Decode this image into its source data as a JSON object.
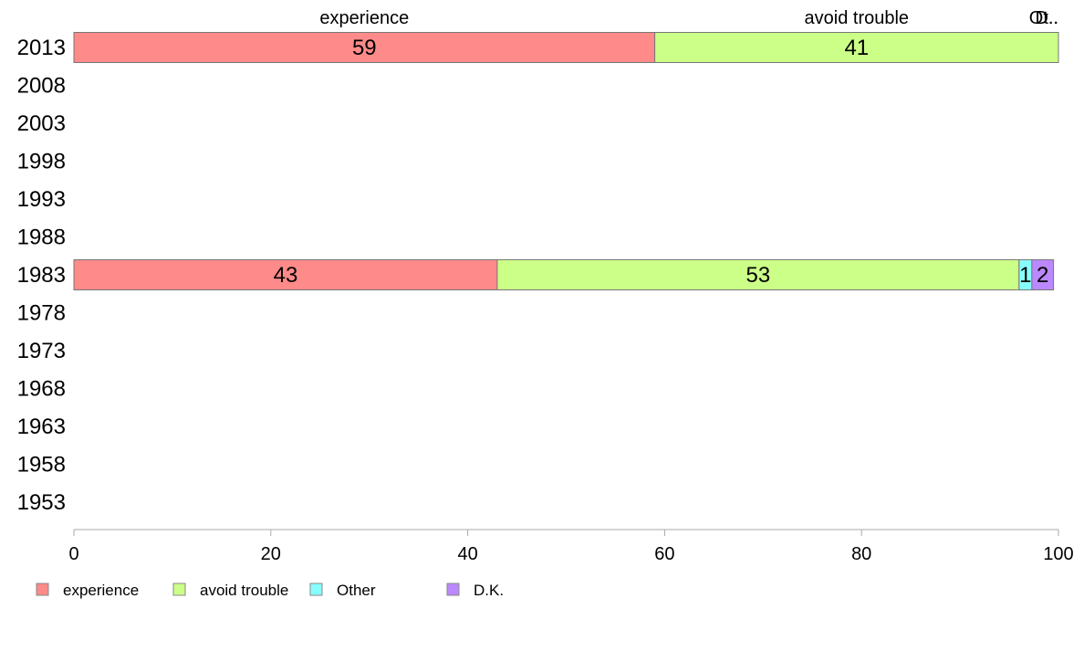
{
  "chart_data": {
    "type": "bar",
    "orientation": "horizontal",
    "stacked": true,
    "categories": [
      "2013",
      "2008",
      "2003",
      "1998",
      "1993",
      "1988",
      "1983",
      "1978",
      "1973",
      "1968",
      "1963",
      "1958",
      "1953"
    ],
    "series": [
      {
        "name": "experience",
        "color": "#ff8a8a",
        "values": [
          59,
          null,
          null,
          null,
          null,
          null,
          43,
          null,
          null,
          null,
          null,
          null,
          null
        ],
        "labels": [
          "59",
          null,
          null,
          null,
          null,
          null,
          "43",
          null,
          null,
          null,
          null,
          null,
          null
        ]
      },
      {
        "name": "avoid trouble",
        "color": "#ccff88",
        "values": [
          41,
          null,
          null,
          null,
          null,
          null,
          53,
          null,
          null,
          null,
          null,
          null,
          null
        ],
        "labels": [
          "41",
          null,
          null,
          null,
          null,
          null,
          "53",
          null,
          null,
          null,
          null,
          null,
          null
        ]
      },
      {
        "name": "Other",
        "color": "#88ffff",
        "values": [
          0,
          null,
          null,
          null,
          null,
          null,
          1.3,
          null,
          null,
          null,
          null,
          null,
          null
        ],
        "labels": [
          null,
          null,
          null,
          null,
          null,
          null,
          "1",
          null,
          null,
          null,
          null,
          null,
          null
        ]
      },
      {
        "name": "D.K.",
        "color": "#bb88ff",
        "values": [
          0,
          null,
          null,
          null,
          null,
          null,
          2.2,
          null,
          null,
          null,
          null,
          null,
          null
        ],
        "labels": [
          null,
          null,
          null,
          null,
          null,
          null,
          "2",
          null,
          null,
          null,
          null,
          null,
          null
        ]
      }
    ],
    "top_labels": [
      "experience",
      "avoid trouble",
      "Ot..",
      "D.."
    ],
    "xlim": [
      0,
      100
    ],
    "xticks": [
      0,
      20,
      40,
      60,
      80,
      100
    ],
    "grid": false,
    "legend_position": "bottom-left"
  }
}
